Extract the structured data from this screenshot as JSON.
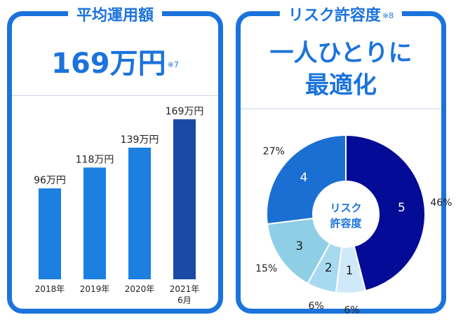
{
  "left_panel": {
    "heading": "平均運用額",
    "amount": "169万円",
    "amount_note": "※7"
  },
  "right_panel": {
    "heading": "リスク許容度",
    "heading_note": "※8",
    "headline_line1": "一人ひとりに",
    "headline_line2": "最適化",
    "donut_center_line1": "リスク",
    "donut_center_line2": "許容度"
  },
  "chart_data": [
    {
      "type": "bar",
      "categories": [
        [
          "2018年"
        ],
        [
          "2019年"
        ],
        [
          "2020年"
        ],
        [
          "2021年",
          "6月"
        ]
      ],
      "values": [
        96,
        118,
        139,
        169
      ],
      "value_labels": [
        "96万円",
        "118万円",
        "139万円",
        "169万円"
      ],
      "unit": "万円",
      "colors": [
        "#1b80e0",
        "#1b80e0",
        "#1b80e0",
        "#1a4aa6"
      ],
      "ylim": [
        0,
        170
      ],
      "grid": false,
      "title": "",
      "xlabel": "",
      "ylabel": ""
    },
    {
      "type": "pie",
      "style": "donut",
      "categories": [
        "1",
        "2",
        "3",
        "4",
        "5"
      ],
      "values": [
        6,
        6,
        15,
        27,
        46
      ],
      "labels": [
        "6%",
        "6%",
        "15%",
        "27%",
        "46%"
      ],
      "colors": [
        "#cfe9fa",
        "#a7daf0",
        "#8fcfe6",
        "#1b6fd2",
        "#040b96"
      ],
      "number_colors": [
        "#222222",
        "#222222",
        "#222222",
        "#ffffff",
        "#ffffff"
      ]
    }
  ]
}
